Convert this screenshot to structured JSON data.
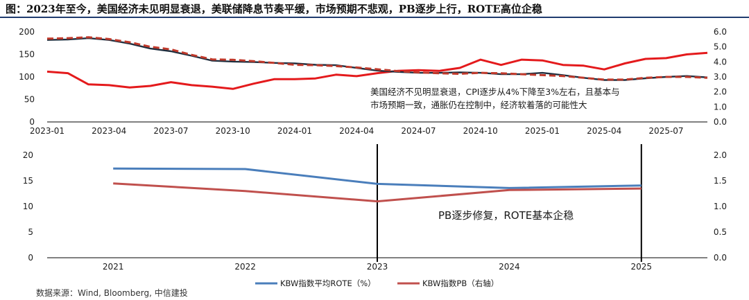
{
  "figure": {
    "title": "图：2023年至今，美国经济未见明显衰退，美联储降息节奏平缓，市场预期不悲观，PB逐步上行，ROTE高位企稳",
    "source": "数据来源：Wind, Bloomberg, 中信建投"
  },
  "colors": {
    "red": "#e41a1c",
    "dark_red": "#c0392b",
    "dark": "#1f2f3f",
    "blue": "#4a7ebb",
    "muted_red": "#c0504d",
    "marker": "#000000"
  },
  "chart_data": [
    {
      "type": "line",
      "id": "top",
      "x": [
        "2023-01",
        "2023-02",
        "2023-03",
        "2023-04",
        "2023-05",
        "2023-06",
        "2023-07",
        "2023-08",
        "2023-09",
        "2023-10",
        "2023-11",
        "2023-12",
        "2024-01",
        "2024-02",
        "2024-03",
        "2024-04",
        "2024-05",
        "2024-06",
        "2024-07",
        "2024-08",
        "2024-09",
        "2024-10",
        "2024-11",
        "2024-12",
        "2025-01",
        "2025-02",
        "2025-03",
        "2025-04",
        "2025-05",
        "2025-06",
        "2025-07",
        "2025-08",
        "2025-09"
      ],
      "xticks": [
        "2023-01",
        "2023-04",
        "2023-07",
        "2023-10",
        "2024-01",
        "2024-04",
        "2024-07",
        "2024-10",
        "2025-01",
        "2025-04",
        "2025-07"
      ],
      "ylim_left": [
        0,
        200
      ],
      "yticks_left": [
        "0",
        "50",
        "100",
        "150",
        "200"
      ],
      "ylim_right": [
        0,
        6
      ],
      "yticks_right": [
        "0.0",
        "1.0",
        "2.0",
        "3.0",
        "4.0",
        "5.0",
        "6.0"
      ],
      "series": [
        {
          "name": "dark-series",
          "axis": "left",
          "style": "solid",
          "values": [
            182,
            183,
            186,
            182,
            174,
            163,
            157,
            147,
            136,
            134,
            133,
            131,
            130,
            127,
            126,
            120,
            114,
            111,
            109,
            109,
            110,
            109,
            106,
            106,
            109,
            104,
            98,
            93,
            93,
            97,
            100,
            102,
            99
          ]
        },
        {
          "name": "dashed-series",
          "axis": "left",
          "style": "dashed",
          "values": [
            185,
            186,
            188,
            184,
            177,
            167,
            161,
            149,
            139,
            138,
            135,
            131,
            127,
            126,
            124,
            121,
            117,
            113,
            110,
            108,
            107,
            109,
            108,
            106,
            104,
            102,
            98,
            94,
            94,
            98,
            100,
            100,
            98
          ]
        },
        {
          "name": "red-series",
          "axis": "right",
          "style": "solid",
          "values": [
            3.35,
            3.25,
            2.5,
            2.45,
            2.3,
            2.4,
            2.65,
            2.45,
            2.35,
            2.2,
            2.55,
            2.85,
            2.85,
            2.9,
            3.15,
            3.05,
            3.25,
            3.4,
            3.45,
            3.4,
            3.6,
            4.15,
            3.8,
            4.15,
            4.1,
            3.8,
            3.75,
            3.5,
            3.9,
            4.2,
            4.25,
            4.5,
            4.6
          ]
        }
      ],
      "annotation": {
        "line1": "美国经济不见明显衰退，CPI逐步从4%下降至3%左右，且基本与",
        "line2": "市场预期一致，通胀仍在控制中，经济软着落的可能性大"
      }
    },
    {
      "type": "line",
      "id": "bottom",
      "categories": [
        "2021",
        "2022",
        "2023",
        "2024",
        "2025"
      ],
      "ylim_left": [
        0,
        20
      ],
      "yticks_left": [
        "0",
        "5",
        "10",
        "15",
        "20"
      ],
      "ylim_right": [
        0,
        2
      ],
      "yticks_right": [
        "0.0",
        "0.5",
        "1.0",
        "1.5",
        "2.0"
      ],
      "series": [
        {
          "name": "KBW指数平均ROTE（%）",
          "axis": "left",
          "values": [
            17.4,
            17.3,
            14.4,
            13.6,
            14.1
          ]
        },
        {
          "name": "KBW指数PB（右轴）",
          "axis": "right",
          "values": [
            1.45,
            1.3,
            1.1,
            1.32,
            1.35
          ]
        }
      ],
      "markers": [
        "2023",
        "2025"
      ],
      "annotation": "PB逐步修复，ROTE基本企稳",
      "legend": [
        "KBW指数平均ROTE（%）",
        "KBW指数PB（右轴）"
      ]
    }
  ]
}
